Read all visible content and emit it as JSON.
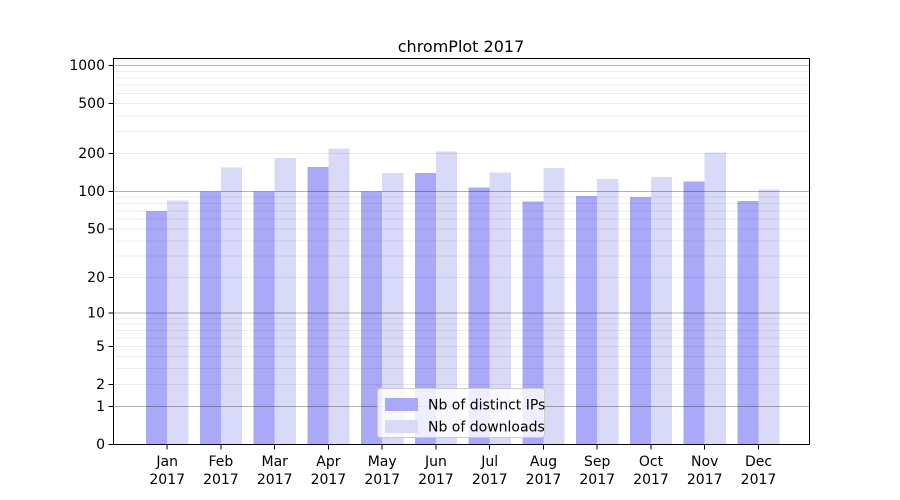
{
  "chart_data": {
    "type": "bar",
    "title": "chromPlot 2017",
    "categories": [
      "Jan",
      "Feb",
      "Mar",
      "Apr",
      "May",
      "Jun",
      "Jul",
      "Aug",
      "Sep",
      "Oct",
      "Nov",
      "Dec"
    ],
    "x_year_label": "2017",
    "series": [
      {
        "name": "Nb of distinct IPs",
        "color": "#a9a9f8",
        "values": [
          70,
          100,
          100,
          157,
          100,
          140,
          108,
          83,
          92,
          90,
          120,
          84
        ]
      },
      {
        "name": "Nb of downloads",
        "color": "#d9d9f8",
        "values": [
          85,
          155,
          185,
          220,
          140,
          208,
          142,
          154,
          126,
          130,
          205,
          104
        ]
      }
    ],
    "y_ticks": [
      0,
      1,
      2,
      5,
      10,
      20,
      50,
      100,
      200,
      500,
      1000
    ],
    "y_scale": "log1p",
    "ylim": [
      0,
      1150
    ],
    "xlabel": "",
    "ylabel": "",
    "grid": "on",
    "grid_major_at": [
      1,
      10,
      100,
      1000
    ],
    "legend_position": "lower-center",
    "spine_color": "#000000",
    "grid_major_color": "rgba(0,0,0,0.30)",
    "grid_minor_color": "rgba(0,0,0,0.07)"
  }
}
